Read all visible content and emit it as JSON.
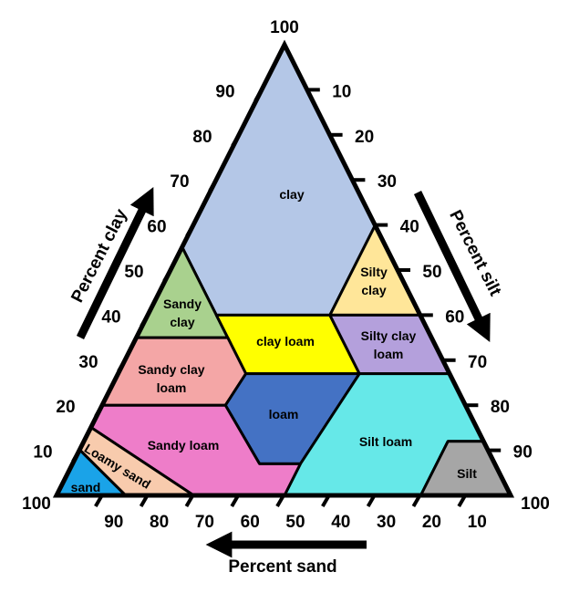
{
  "diagram": {
    "regions": [
      {
        "id": "clay",
        "lines": [
          "clay"
        ],
        "color": "#b4c7e7"
      },
      {
        "id": "silty-clay",
        "lines": [
          "Silty",
          "clay"
        ],
        "color": "#ffe699"
      },
      {
        "id": "sandy-clay",
        "lines": [
          "Sandy",
          "clay"
        ],
        "color": "#a9d18e"
      },
      {
        "id": "clay-loam",
        "lines": [
          "clay loam"
        ],
        "color": "#ffff00"
      },
      {
        "id": "silty-clay-loam",
        "lines": [
          "Silty clay",
          "loam"
        ],
        "color": "#b4a0dc"
      },
      {
        "id": "sandy-clay-loam",
        "lines": [
          "Sandy clay",
          "loam"
        ],
        "color": "#f4a6a6"
      },
      {
        "id": "loam",
        "lines": [
          "loam"
        ],
        "color": "#4472c4"
      },
      {
        "id": "silt-loam",
        "lines": [
          "Silt loam"
        ],
        "color": "#66e8e8"
      },
      {
        "id": "sandy-loam",
        "lines": [
          "Sandy loam"
        ],
        "color": "#ee7dc9"
      },
      {
        "id": "loamy-sand",
        "lines": [
          "Loamy sand"
        ],
        "color": "#f8cbad"
      },
      {
        "id": "sand",
        "lines": [
          "sand"
        ],
        "color": "#1aa3e8"
      },
      {
        "id": "silt",
        "lines": [
          "Silt"
        ],
        "color": "#a6a6a6"
      }
    ],
    "axes": {
      "clay": {
        "title": "Percent clay",
        "ticks": [
          "100",
          "90",
          "80",
          "70",
          "60",
          "50",
          "40",
          "30",
          "20",
          "10"
        ]
      },
      "silt": {
        "title": "Percent silt",
        "ticks": [
          "10",
          "20",
          "30",
          "40",
          "50",
          "60",
          "70",
          "80",
          "90",
          "100"
        ]
      },
      "sand": {
        "title": "Percent sand",
        "ticks": [
          "90",
          "80",
          "70",
          "60",
          "50",
          "40",
          "30",
          "20",
          "10"
        ]
      }
    }
  }
}
